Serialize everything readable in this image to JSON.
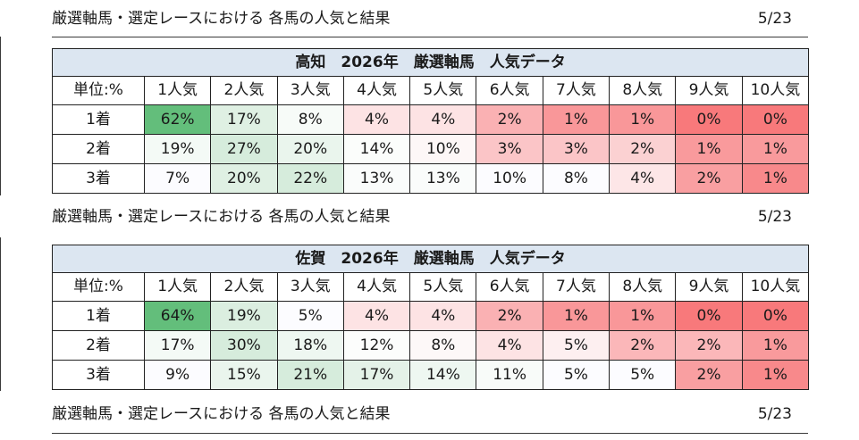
{
  "sections": [
    {
      "caption": "厳選軸馬・選定レースにおける 各馬の人気と結果",
      "date": "5/23",
      "table": {
        "title": "高知　2026年　厳選軸馬　人気データ",
        "corner": "単位:%",
        "columns": [
          "1人気",
          "2人気",
          "3人気",
          "4人気",
          "5人気",
          "6人気",
          "7人気",
          "8人気",
          "9人気",
          "10人気"
        ],
        "rows": [
          {
            "label": "1着",
            "values": [
              "62%",
              "17%",
              "8%",
              "4%",
              "4%",
              "2%",
              "1%",
              "1%",
              "0%",
              "0%"
            ],
            "colors": [
              "#63be7b",
              "#dff0e3",
              "#f7fbf8",
              "#fde3e4",
              "#fde3e4",
              "#fab1b3",
              "#f99799",
              "#f99799",
              "#f8797b",
              "#f8797b"
            ]
          },
          {
            "label": "2着",
            "values": [
              "19%",
              "27%",
              "20%",
              "14%",
              "10%",
              "3%",
              "3%",
              "2%",
              "1%",
              "1%"
            ],
            "colors": [
              "#f4faf6",
              "#d6ecdc",
              "#eaf5ed",
              "#fbfdfb",
              "#fdf7f7",
              "#fbc5c7",
              "#fbc5c7",
              "#fbd1d2",
              "#f99a9c",
              "#f99a9c"
            ]
          },
          {
            "label": "3着",
            "values": [
              "7%",
              "20%",
              "22%",
              "13%",
              "13%",
              "10%",
              "8%",
              "4%",
              "2%",
              "1%"
            ],
            "colors": [
              "#fcfcff",
              "#dff0e3",
              "#d6ecdc",
              "#fafcfb",
              "#fafcfb",
              "#fcfcff",
              "#fcfcff",
              "#fde6e7",
              "#f99fa1",
              "#f8898b"
            ]
          }
        ]
      }
    },
    {
      "caption": "厳選軸馬・選定レースにおける 各馬の人気と結果",
      "date": "5/23",
      "table": {
        "title": "佐賀　2026年　厳選軸馬　人気データ",
        "corner": "単位:%",
        "columns": [
          "1人気",
          "2人気",
          "3人気",
          "4人気",
          "5人気",
          "6人気",
          "7人気",
          "8人気",
          "9人気",
          "10人気"
        ],
        "rows": [
          {
            "label": "1着",
            "values": [
              "64%",
              "19%",
              "5%",
              "4%",
              "4%",
              "2%",
              "1%",
              "1%",
              "0%",
              "0%"
            ],
            "colors": [
              "#63be7b",
              "#dbeee0",
              "#fcfcff",
              "#fde3e4",
              "#fde3e4",
              "#fab1b3",
              "#f99799",
              "#f99799",
              "#f8797b",
              "#f8797b"
            ]
          },
          {
            "label": "2着",
            "values": [
              "17%",
              "30%",
              "18%",
              "12%",
              "8%",
              "4%",
              "5%",
              "2%",
              "2%",
              "1%"
            ],
            "colors": [
              "#f4faf6",
              "#d6ecdc",
              "#eef7f1",
              "#fcfdfc",
              "#fdf8f8",
              "#fde3e4",
              "#fdeff0",
              "#fbb7b9",
              "#fbb7b9",
              "#f99a9c"
            ]
          },
          {
            "label": "3着",
            "values": [
              "9%",
              "15%",
              "21%",
              "17%",
              "14%",
              "11%",
              "5%",
              "5%",
              "2%",
              "1%"
            ],
            "colors": [
              "#fcfcff",
              "#eaf5ed",
              "#d6ecdc",
              "#e4f2e8",
              "#eef7f1",
              "#f8fbf9",
              "#fcfcff",
              "#fcfcff",
              "#f99fa1",
              "#f8898b"
            ]
          }
        ]
      }
    },
    {
      "caption": "厳選軸馬・選定レースにおける 各馬の人気と結果",
      "date": "5/23"
    }
  ]
}
